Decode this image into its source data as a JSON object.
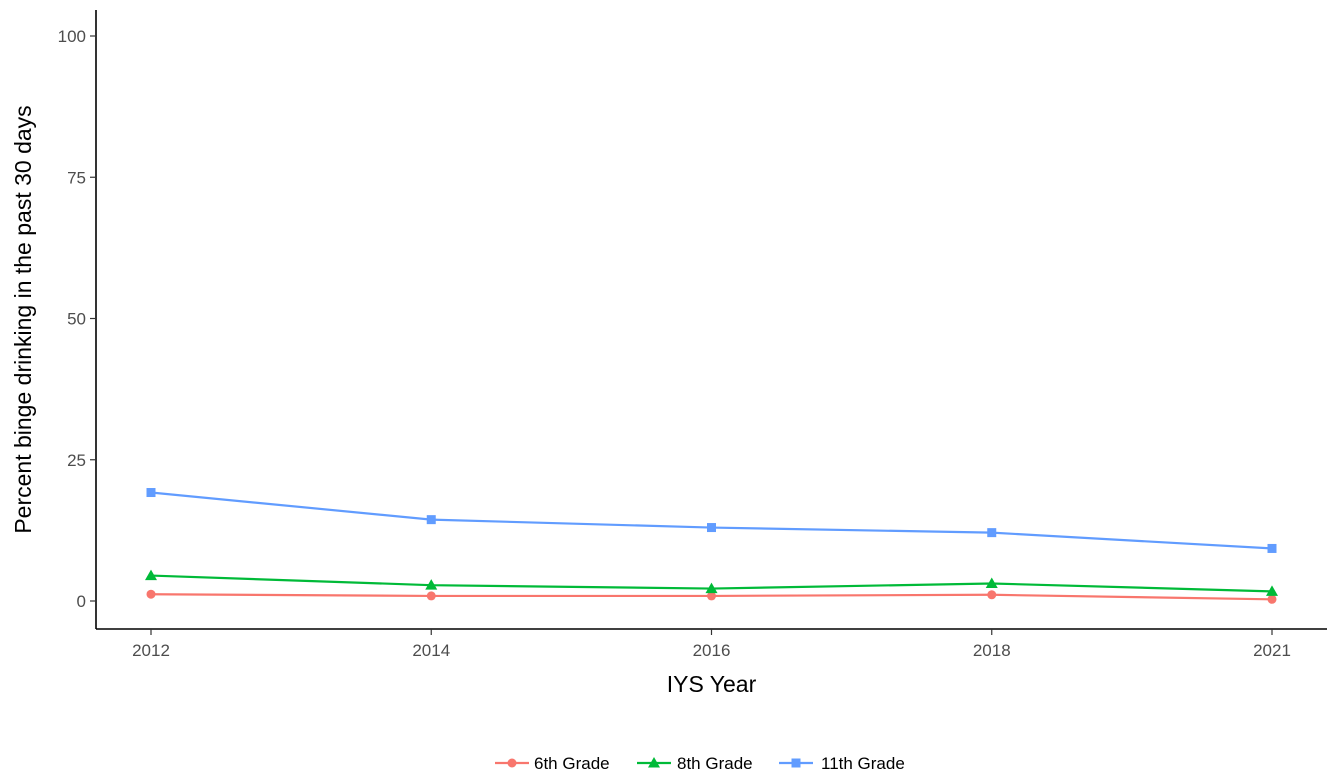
{
  "chart_data": {
    "type": "line",
    "title": "",
    "xlabel": "IYS Year",
    "ylabel": "Percent binge drinking in the past 30 days",
    "x": [
      2012,
      2014,
      2016,
      2018,
      2021
    ],
    "x_tick_labels": [
      "2012",
      "2014",
      "2016",
      "2018",
      "2021"
    ],
    "x_axis_type": "categorical",
    "ylim": [
      0,
      100
    ],
    "y_ticks": [
      0,
      25,
      50,
      75,
      100
    ],
    "y_tick_labels": [
      "0",
      "25",
      "50",
      "75",
      "100"
    ],
    "grid": false,
    "legend_position": "bottom",
    "series": [
      {
        "name": "6th Grade",
        "values": [
          1.2,
          0.9,
          0.9,
          1.1,
          0.3
        ],
        "color": "#F8766D",
        "marker": "circle"
      },
      {
        "name": "8th Grade",
        "values": [
          4.5,
          2.8,
          2.2,
          3.1,
          1.7
        ],
        "color": "#00BA38",
        "marker": "triangle"
      },
      {
        "name": "11th Grade",
        "values": [
          19.2,
          14.4,
          13.0,
          12.1,
          9.3
        ],
        "color": "#619CFF",
        "marker": "square"
      }
    ]
  }
}
